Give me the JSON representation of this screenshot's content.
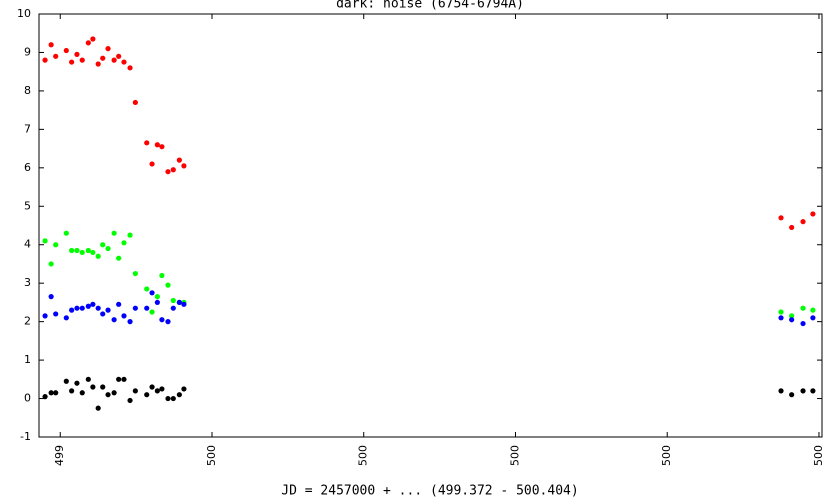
{
  "chart_data": {
    "type": "scatter",
    "title": "dark: noise (6754-6794A)",
    "x_label": "JD = 2457000 + ... (499.372 - 500.404)",
    "x": [
      499.38,
      499.388,
      499.394,
      499.408,
      499.415,
      499.422,
      499.429,
      499.437,
      499.443,
      499.45,
      499.456,
      499.463,
      499.471,
      499.477,
      499.484,
      499.492,
      499.499,
      499.514,
      499.521,
      499.528,
      499.534,
      499.542,
      499.549,
      499.557,
      499.563,
      500.35,
      500.364,
      500.379,
      500.392
    ],
    "series": [
      {
        "color": "#ff0000",
        "values": [
          8.8,
          9.2,
          8.9,
          9.05,
          8.75,
          8.95,
          8.8,
          9.25,
          9.35,
          8.7,
          8.85,
          9.1,
          8.8,
          8.9,
          8.75,
          8.6,
          7.7,
          6.65,
          6.1,
          6.6,
          6.55,
          5.9,
          5.95,
          6.2,
          6.05,
          4.7,
          4.45,
          4.6,
          4.8
        ]
      },
      {
        "color": "#00ff00",
        "values": [
          4.1,
          3.5,
          4.0,
          4.3,
          3.85,
          3.85,
          3.8,
          3.85,
          3.8,
          3.7,
          4.0,
          3.9,
          4.3,
          3.65,
          4.05,
          4.25,
          3.25,
          2.85,
          2.25,
          2.65,
          3.2,
          2.95,
          2.55,
          2.5,
          2.5,
          2.25,
          2.15,
          2.35,
          2.3
        ]
      },
      {
        "color": "#0000ff",
        "values": [
          2.15,
          2.65,
          2.2,
          2.1,
          2.3,
          2.35,
          2.35,
          2.4,
          2.45,
          2.35,
          2.2,
          2.3,
          2.05,
          2.45,
          2.15,
          2.0,
          2.35,
          2.35,
          2.75,
          2.5,
          2.05,
          2.0,
          2.35,
          2.5,
          2.45,
          2.1,
          2.05,
          1.95,
          2.1
        ]
      },
      {
        "color": "#000000",
        "values": [
          0.05,
          0.15,
          0.15,
          0.45,
          0.2,
          0.4,
          0.15,
          0.5,
          0.3,
          -0.25,
          0.3,
          0.1,
          0.15,
          0.5,
          0.5,
          -0.05,
          0.2,
          0.1,
          0.3,
          0.2,
          0.25,
          0.0,
          0.0,
          0.1,
          0.25,
          0.2,
          0.1,
          0.2,
          0.2
        ]
      }
    ],
    "xlim": [
      499.372,
      500.404
    ],
    "xticks": [
      {
        "value": 499.4,
        "label": "499"
      },
      {
        "value": 499.6,
        "label": "500"
      },
      {
        "value": 499.8,
        "label": "500"
      },
      {
        "value": 500.0,
        "label": "500"
      },
      {
        "value": 500.2,
        "label": "500"
      },
      {
        "value": 500.4,
        "label": "500"
      }
    ],
    "ylim": [
      -1,
      10
    ],
    "yticks": [
      -1,
      0,
      1,
      2,
      3,
      4,
      5,
      6,
      7,
      8,
      9,
      10
    ]
  }
}
